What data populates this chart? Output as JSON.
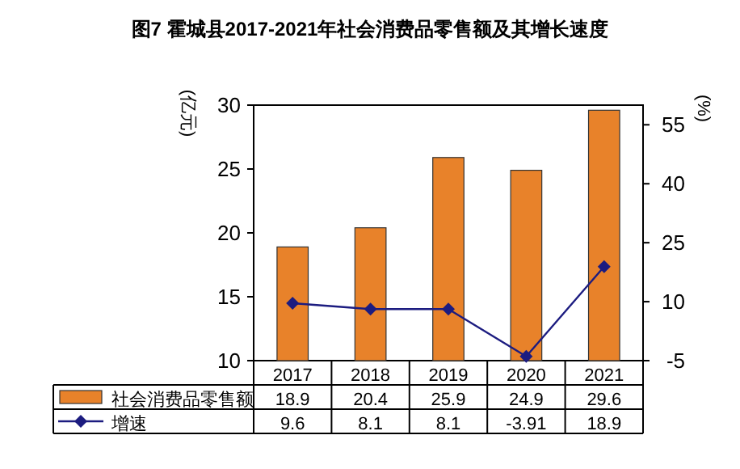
{
  "chart_data": {
    "type": "bar",
    "title": "图7 霍城县2017-2021年社会消费品零售额及其增长速度",
    "ylabel": "(亿元)",
    "y2label": "(%)",
    "categories": [
      "2017",
      "2018",
      "2019",
      "2020",
      "2021"
    ],
    "series": [
      {
        "name": "社会消费品零售额",
        "color": "#e8822a",
        "values": [
          18.9,
          20.4,
          25.9,
          24.9,
          29.6
        ]
      },
      {
        "name": "增速",
        "type": "line",
        "axis": "y2",
        "color": "#1c1c80",
        "marker": "diamond",
        "values": [
          9.6,
          8.1,
          8.1,
          -3.91,
          18.9
        ]
      }
    ],
    "ylim": [
      10,
      30
    ],
    "yticks": [
      10,
      15,
      20,
      25,
      30
    ],
    "y2lim": [
      -5,
      60
    ],
    "y2ticks": [
      -5,
      10,
      25,
      40,
      55
    ],
    "data_labels": true,
    "legend": "bottom left",
    "grid": false
  }
}
